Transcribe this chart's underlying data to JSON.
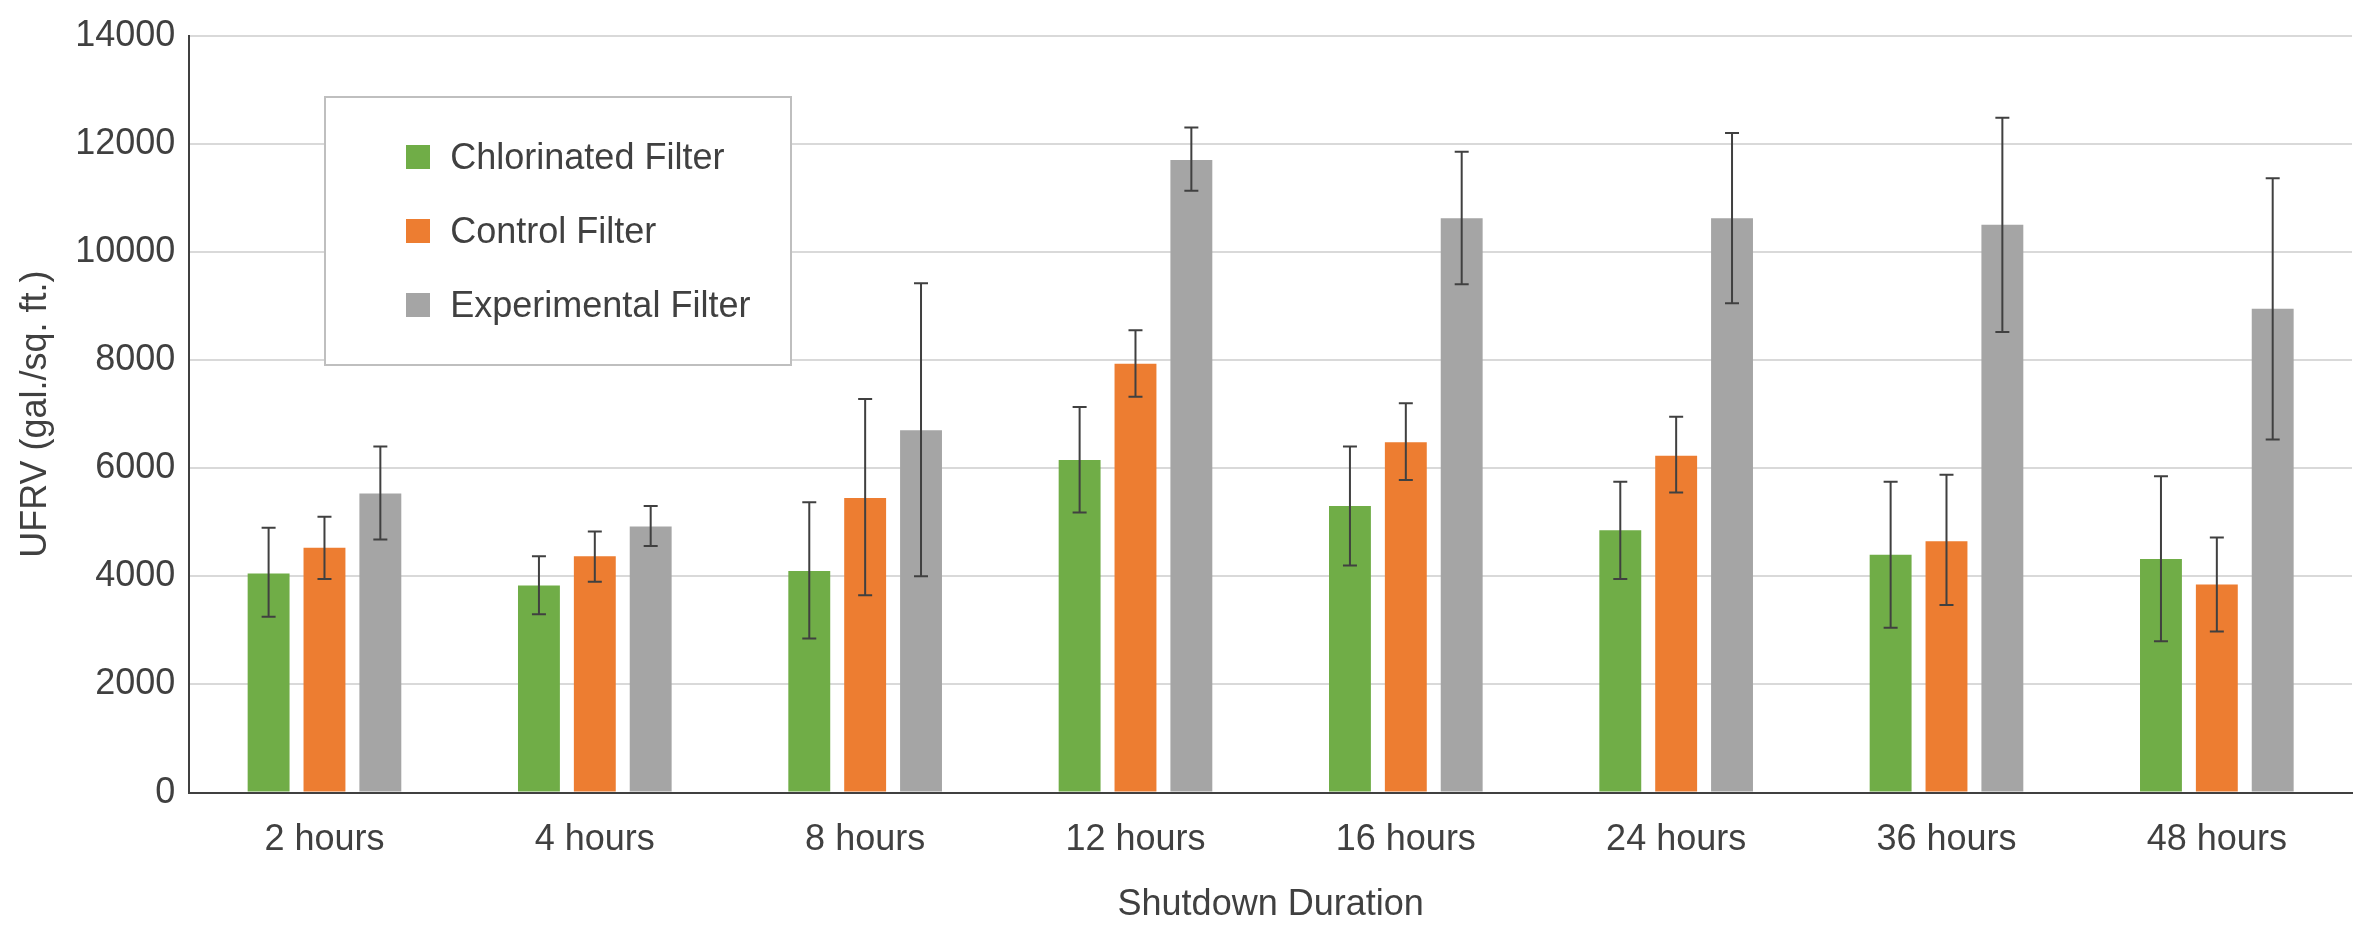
{
  "chart_data": {
    "type": "bar",
    "xlabel": "Shutdown Duration",
    "ylabel": "UFRV (gal./sq. ft.)",
    "categories": [
      "2 hours",
      "4 hours",
      "8 hours",
      "12 hours",
      "16 hours",
      "24 hours",
      "36 hours",
      "48 hours"
    ],
    "series": [
      {
        "name": "Chlorinated Filter",
        "color": "#70ad47",
        "values": [
          4050,
          3830,
          4100,
          6150,
          5300,
          4850,
          4400,
          4320
        ],
        "errors": [
          [
            3250,
            4900
          ],
          [
            3300,
            4370
          ],
          [
            2850,
            5370
          ],
          [
            5180,
            7130
          ],
          [
            4200,
            6400
          ],
          [
            3950,
            5750
          ],
          [
            3050,
            5750
          ],
          [
            2800,
            5850
          ]
        ]
      },
      {
        "name": "Control Filter",
        "color": "#ed7d31",
        "values": [
          4530,
          4370,
          5450,
          7930,
          6480,
          6230,
          4650,
          3850
        ],
        "errors": [
          [
            3950,
            5100
          ],
          [
            3900,
            4830
          ],
          [
            3650,
            7280
          ],
          [
            7320,
            8550
          ],
          [
            5780,
            7200
          ],
          [
            5550,
            6950
          ],
          [
            3470,
            5880
          ],
          [
            2980,
            4720
          ]
        ]
      },
      {
        "name": "Experimental Filter",
        "color": "#a5a5a5",
        "values": [
          5530,
          4920,
          6700,
          11700,
          10620,
          10620,
          10500,
          8950
        ],
        "errors": [
          [
            4680,
            6400
          ],
          [
            4560,
            5300
          ],
          [
            4000,
            9420
          ],
          [
            11130,
            12300
          ],
          [
            9400,
            11850
          ],
          [
            9050,
            12200
          ],
          [
            8520,
            12480
          ],
          [
            6530,
            11360
          ]
        ]
      }
    ],
    "ylim": [
      0,
      14000
    ],
    "yticks": [
      0,
      2000,
      4000,
      6000,
      8000,
      10000,
      12000,
      14000
    ],
    "grid": "y",
    "legend": "top left"
  }
}
